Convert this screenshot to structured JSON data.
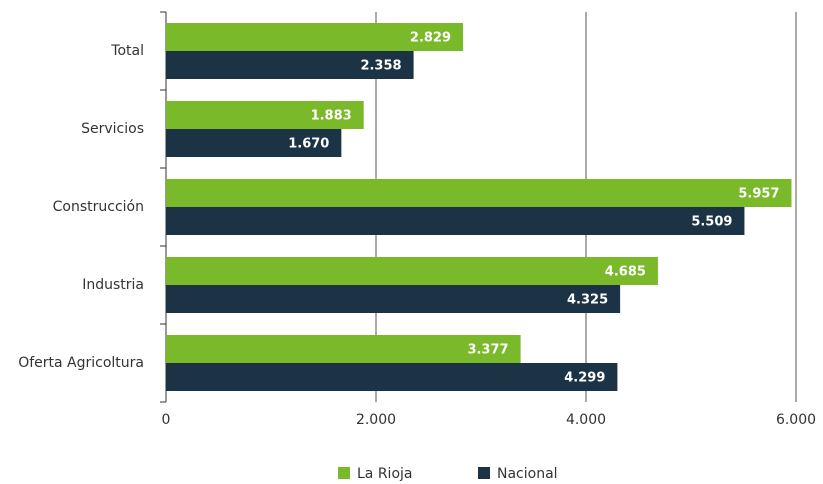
{
  "chart_data": {
    "type": "hbar",
    "categories": [
      "Total",
      "Servicios",
      "Construcción",
      "Industria",
      "Oferta Agricoltura"
    ],
    "series": [
      {
        "name": "La Rioja",
        "color": "#7ab929",
        "values": [
          2829,
          1883,
          5957,
          4685,
          3377
        ],
        "value_labels": [
          "2.829",
          "1.883",
          "5.957",
          "4.685",
          "3.377"
        ]
      },
      {
        "name": "Nacional",
        "color": "#1c3345",
        "values": [
          2358,
          1670,
          5509,
          4325,
          4299
        ],
        "value_labels": [
          "2.358",
          "1.670",
          "5.509",
          "4.325",
          "4.299"
        ]
      }
    ],
    "xlim": [
      0,
      6000
    ],
    "xticks": [
      0,
      {
        "value": 2000,
        "label": "2.000"
      },
      {
        "value": 4000,
        "label": "4.000"
      },
      {
        "value": 6000,
        "label": "6.000"
      }
    ],
    "grid": true,
    "legend": "bottom"
  }
}
